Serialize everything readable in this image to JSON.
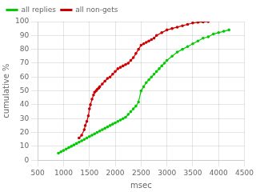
{
  "chart_data": {
    "type": "line",
    "xlabel": "msec",
    "ylabel": "cumulative %",
    "xlim": [
      500,
      4500
    ],
    "ylim": [
      0,
      100
    ],
    "xticks": [
      500,
      1000,
      1500,
      2000,
      2500,
      3000,
      3500,
      4000,
      4500
    ],
    "yticks": [
      0,
      10,
      20,
      30,
      40,
      50,
      60,
      70,
      80,
      90,
      100
    ],
    "grid": true,
    "legend": "upper left",
    "series": [
      {
        "name": "all replies",
        "color": "#00cc00",
        "x": [
          900,
          950,
          1000,
          1050,
          1100,
          1150,
          1200,
          1250,
          1300,
          1350,
          1400,
          1450,
          1500,
          1550,
          1600,
          1650,
          1700,
          1750,
          1800,
          1850,
          1900,
          1950,
          2000,
          2050,
          2100,
          2150,
          2200,
          2250,
          2300,
          2350,
          2400,
          2450,
          2500,
          2550,
          2600,
          2650,
          2700,
          2750,
          2800,
          2850,
          2900,
          2950,
          3000,
          3100,
          3200,
          3300,
          3400,
          3500,
          3600,
          3700,
          3800,
          3900,
          4000,
          4100,
          4200
        ],
        "values": [
          5,
          6,
          7,
          8,
          9,
          10,
          11,
          12,
          13,
          14,
          15,
          16,
          17,
          18,
          19,
          20,
          21,
          22,
          23,
          24,
          25,
          26,
          27,
          28,
          29,
          30,
          31,
          33,
          35,
          37,
          39,
          42,
          50,
          53,
          56,
          58,
          60,
          62,
          64,
          66,
          68,
          70,
          72,
          75,
          78,
          80,
          82,
          84,
          86,
          88,
          89,
          91,
          92,
          93,
          94
        ]
      },
      {
        "name": "all non-gets",
        "color": "#cc0000",
        "x": [
          1300,
          1350,
          1400,
          1420,
          1450,
          1480,
          1500,
          1520,
          1550,
          1580,
          1600,
          1630,
          1650,
          1680,
          1700,
          1750,
          1800,
          1850,
          1900,
          1950,
          2000,
          2050,
          2100,
          2150,
          2200,
          2250,
          2300,
          2350,
          2400,
          2450,
          2500,
          2550,
          2600,
          2650,
          2700,
          2750,
          2800,
          2900,
          3000,
          3100,
          3200,
          3300,
          3400,
          3500,
          3600,
          3700,
          3800
        ],
        "values": [
          16,
          18,
          22,
          25,
          28,
          32,
          37,
          40,
          44,
          47,
          49,
          50,
          51,
          52,
          53,
          55,
          57,
          59,
          60,
          62,
          64,
          66,
          67,
          68,
          69,
          70,
          72,
          74,
          77,
          80,
          83,
          84,
          85,
          86,
          87,
          88,
          90,
          92,
          94,
          95,
          96,
          97,
          98,
          99,
          99.5,
          99.7,
          100
        ]
      }
    ]
  }
}
